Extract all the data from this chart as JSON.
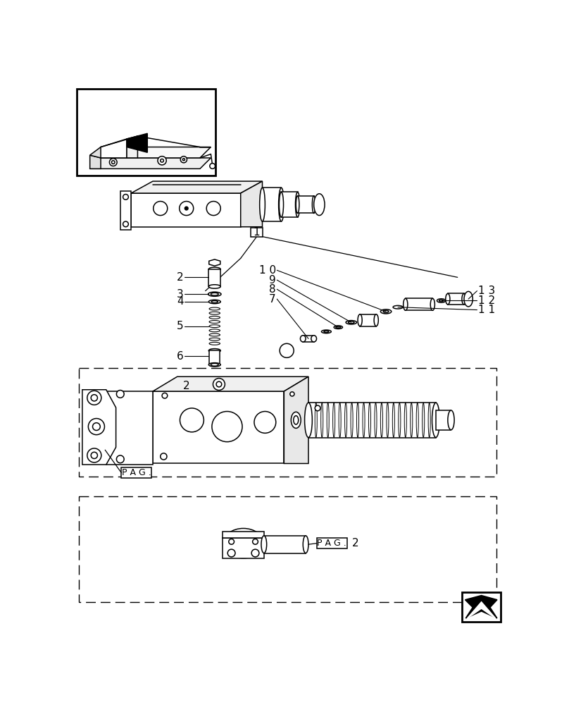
{
  "bg_color": "#ffffff",
  "lc": "#000000",
  "fig_width": 8.08,
  "fig_height": 10.0,
  "dpi": 100,
  "lw": 1.1
}
